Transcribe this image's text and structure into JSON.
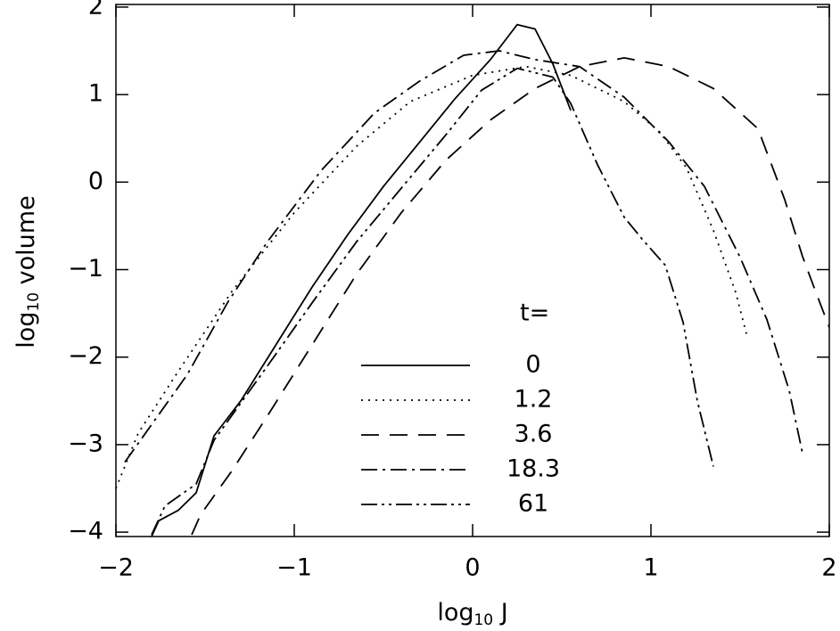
{
  "chart_data": {
    "type": "line",
    "xlabel": {
      "main": "log",
      "sub": "10",
      "rest": " J"
    },
    "ylabel": {
      "main": "log",
      "sub": "10",
      "rest": " volume"
    },
    "xlim": [
      -2,
      2
    ],
    "ylim": [
      -4.05,
      2.03
    ],
    "xticks": [
      {
        "value": -2,
        "label": "−2"
      },
      {
        "value": -1,
        "label": "−1"
      },
      0,
      1,
      2
    ],
    "yticks": [
      {
        "value": -4,
        "label": "−4"
      },
      {
        "value": -3,
        "label": "−3"
      },
      {
        "value": -2,
        "label": "−2"
      },
      {
        "value": -1,
        "label": "−1"
      },
      0,
      1,
      2
    ],
    "legend_title": "t=",
    "series": [
      {
        "name": "0",
        "color": "#000",
        "dash": "none",
        "x": [
          -1.8,
          -1.76,
          -1.65,
          -1.55,
          -1.45,
          -1.3,
          -1.1,
          -0.9,
          -0.7,
          -0.5,
          -0.3,
          -0.1,
          0.1,
          0.25,
          0.35,
          0.45,
          0.55
        ],
        "values": [
          -4.05,
          -3.87,
          -3.75,
          -3.55,
          -2.9,
          -2.5,
          -1.85,
          -1.2,
          -0.6,
          -0.05,
          0.45,
          0.95,
          1.4,
          1.8,
          1.75,
          1.35,
          0.82
        ]
      },
      {
        "name": "1.2",
        "color": "#000",
        "dash": "2,6",
        "x": [
          -2,
          -1.875,
          -1.65,
          -1.35,
          -1,
          -0.65,
          -0.35,
          0,
          0.3,
          0.55,
          0.85,
          1.05,
          1.2,
          1.35,
          1.475,
          1.54
        ],
        "values": [
          -3.5,
          -2.87,
          -2.16,
          -1.25,
          -0.35,
          0.41,
          0.92,
          1.22,
          1.32,
          1.22,
          0.92,
          0.57,
          0.16,
          -0.55,
          -1.26,
          -1.77
        ]
      },
      {
        "name": "3.6",
        "color": "#000",
        "dash": "20,12",
        "x": [
          -1.575,
          -1.525,
          -1.35,
          -1.15,
          -0.9,
          -0.65,
          -0.4,
          -0.15,
          0.1,
          0.35,
          0.6,
          0.85,
          1.1,
          1.35,
          1.6,
          1.75,
          1.85,
          1.925,
          2
        ],
        "values": [
          -4.03,
          -3.8,
          -3.3,
          -2.67,
          -1.86,
          -1.05,
          -0.35,
          0.25,
          0.71,
          1.07,
          1.32,
          1.42,
          1.32,
          1.07,
          0.61,
          -0.2,
          -0.85,
          -1.26,
          -1.66
        ]
      },
      {
        "name": "18.3",
        "color": "#000",
        "dash": "18,6,3,6",
        "x": [
          -1.95,
          -1.775,
          -1.6,
          -1.375,
          -1.15,
          -0.85,
          -0.55,
          -0.3,
          -0.05,
          0.15,
          0.35,
          0.6,
          0.85,
          1.1,
          1.3,
          1.5,
          1.65,
          1.775,
          1.85
        ],
        "values": [
          -3.2,
          -2.7,
          -2.2,
          -1.38,
          -0.68,
          0.13,
          0.79,
          1.15,
          1.45,
          1.5,
          1.4,
          1.32,
          0.97,
          0.46,
          -0.05,
          -0.86,
          -1.57,
          -2.38,
          -3.1
        ]
      },
      {
        "name": "61",
        "color": "#000",
        "dash": "18,5,3,5,3,5",
        "x": [
          -1.8,
          -1.725,
          -1.55,
          -1.45,
          -1.15,
          -0.9,
          -0.65,
          -0.4,
          -0.15,
          0.05,
          0.25,
          0.45,
          0.55,
          0.7,
          0.85,
          0.95,
          1.08,
          1.18,
          1.26,
          1.35
        ],
        "values": [
          -4.03,
          -3.7,
          -3.45,
          -2.95,
          -2.1,
          -1.38,
          -0.68,
          -0.07,
          0.54,
          1.05,
          1.3,
          1.2,
          0.9,
          0.2,
          -0.4,
          -0.65,
          -0.95,
          -1.6,
          -2.5,
          -3.25
        ]
      }
    ]
  }
}
